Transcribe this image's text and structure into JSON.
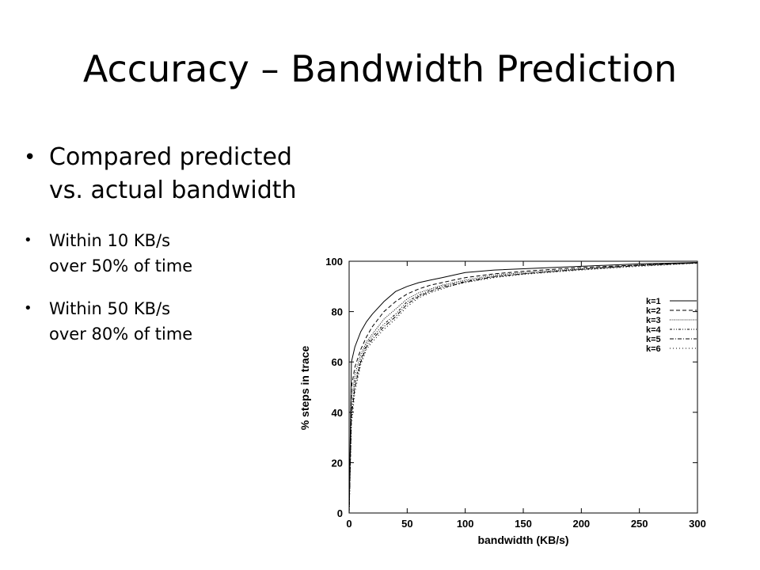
{
  "slide": {
    "title": "Accuracy – Bandwidth Prediction",
    "bullets": [
      {
        "line1": "Compared predicted",
        "line2": "vs. actual bandwidth"
      },
      {
        "line1": "Within 10 KB/s",
        "line2": "over 50% of time"
      },
      {
        "line1": "Within 50 KB/s",
        "line2": "over 80% of time"
      }
    ]
  },
  "chart_data": {
    "type": "line",
    "xlabel": "bandwidth (KB/s)",
    "ylabel": "% steps in trace",
    "xlim": [
      0,
      300
    ],
    "ylim": [
      0,
      100
    ],
    "xticks": [
      0,
      50,
      100,
      150,
      200,
      250,
      300
    ],
    "yticks": [
      0,
      20,
      40,
      60,
      80,
      100
    ],
    "grid": false,
    "legend_position": "right",
    "x": [
      0,
      2,
      5,
      10,
      15,
      20,
      30,
      40,
      50,
      60,
      70,
      80,
      90,
      100,
      125,
      150,
      200,
      250,
      300
    ],
    "series": [
      {
        "name": "k=1",
        "dash": "solid",
        "values": [
          0,
          60,
          66,
          72,
          76,
          79,
          84,
          88,
          90,
          91.5,
          92.5,
          93.5,
          94.5,
          95.5,
          96.5,
          97,
          98,
          99,
          99.5
        ]
      },
      {
        "name": "k=2",
        "dash": "dashed",
        "values": [
          0,
          50,
          58,
          65,
          70,
          74,
          80,
          84,
          87,
          89,
          90.5,
          91.5,
          92.5,
          93.5,
          95,
          96,
          97.5,
          98.5,
          99.5
        ]
      },
      {
        "name": "k=3",
        "dash": "dotted",
        "values": [
          0,
          45,
          55,
          63,
          68,
          71,
          77,
          81,
          85,
          87.5,
          89,
          90.5,
          91.5,
          92.5,
          94.5,
          95.5,
          97,
          98.5,
          99.5
        ]
      },
      {
        "name": "k=4",
        "dash": "dash-dot-dot",
        "values": [
          0,
          40,
          52,
          61,
          67,
          70,
          75,
          79,
          84,
          86.5,
          88.5,
          90,
          91,
          92,
          94,
          95,
          96.8,
          98.3,
          99.3
        ]
      },
      {
        "name": "k=5",
        "dash": "dash-dot",
        "values": [
          0,
          38,
          50,
          60,
          66,
          69,
          74,
          78,
          83,
          86,
          88,
          89.5,
          90.5,
          91.8,
          93.8,
          95,
          96.8,
          98.3,
          99.3
        ]
      },
      {
        "name": "k=6",
        "dash": "loose-dotted",
        "values": [
          0,
          35,
          48,
          59,
          65,
          68,
          73,
          77,
          82,
          85.5,
          87.5,
          89,
          90.5,
          91.5,
          93.5,
          94.8,
          96.5,
          98,
          99.2
        ]
      }
    ]
  }
}
